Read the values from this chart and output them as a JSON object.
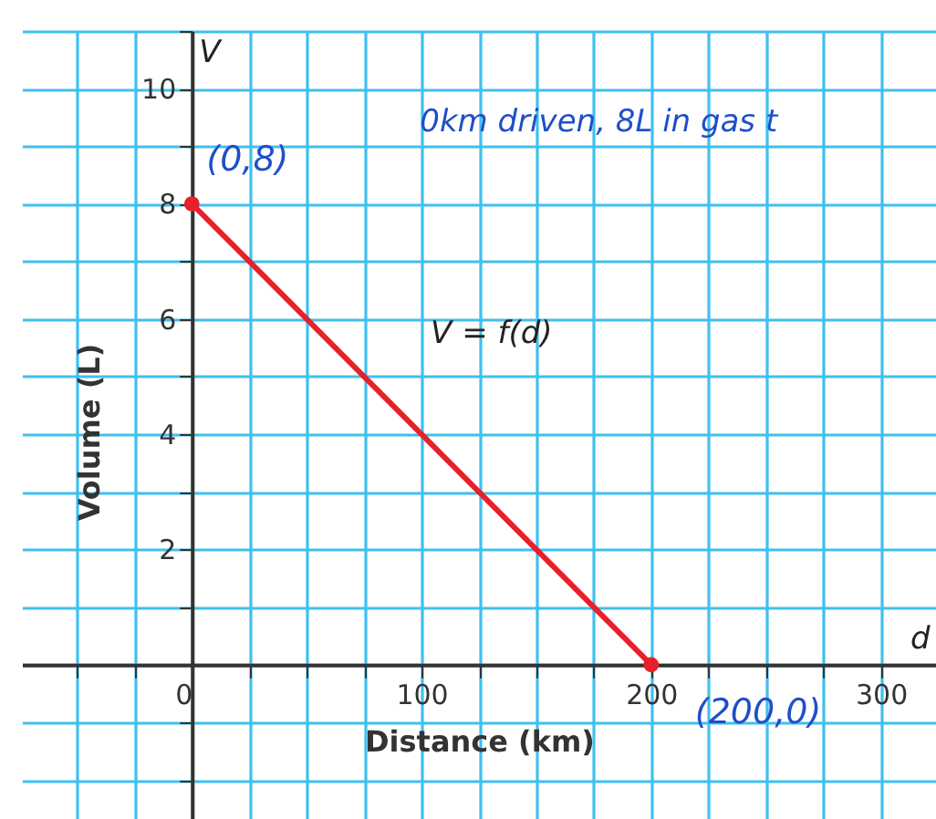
{
  "chart_data": {
    "type": "line",
    "xlabel": "Distance (km)",
    "ylabel": "Volume (L)",
    "x": [
      0,
      200
    ],
    "series": [
      {
        "name": "V = f(d)",
        "color": "#e8202a",
        "values": [
          8,
          0
        ]
      }
    ],
    "xlim": [
      -74,
      324
    ],
    "ylim": [
      -2.9,
      11
    ],
    "xticks": [
      {
        "value": -50,
        "label": null
      },
      {
        "value": -25,
        "label": null
      },
      {
        "value": 0,
        "label": "0"
      },
      {
        "value": 25,
        "label": null
      },
      {
        "value": 50,
        "label": null
      },
      {
        "value": 75,
        "label": null
      },
      100,
      {
        "value": 125,
        "label": null
      },
      {
        "value": 150,
        "label": null
      },
      {
        "value": 175,
        "label": null
      },
      200,
      {
        "value": 225,
        "label": null
      },
      {
        "value": 250,
        "label": null
      },
      {
        "value": 275,
        "label": null
      },
      300
    ],
    "yticks": [
      {
        "value": -2,
        "label": null
      },
      {
        "value": -1,
        "label": null
      },
      {
        "value": 0,
        "label": null
      },
      {
        "value": 1,
        "label": null
      },
      2,
      {
        "value": 3,
        "label": null
      },
      4,
      {
        "value": 5,
        "label": null
      },
      6,
      {
        "value": 7,
        "label": null
      },
      8,
      {
        "value": 9,
        "label": null
      },
      10,
      {
        "value": 11,
        "label": null
      }
    ],
    "grid": true,
    "marker": "circle",
    "line_style": "solid",
    "annotations": [
      "V",
      "d",
      {
        "text": "(0,8)",
        "x": 0,
        "y": 8
      },
      "0km driven, 8L in gas t",
      {
        "text": "(200,0)",
        "x": 200,
        "y": 0
      }
    ]
  }
}
